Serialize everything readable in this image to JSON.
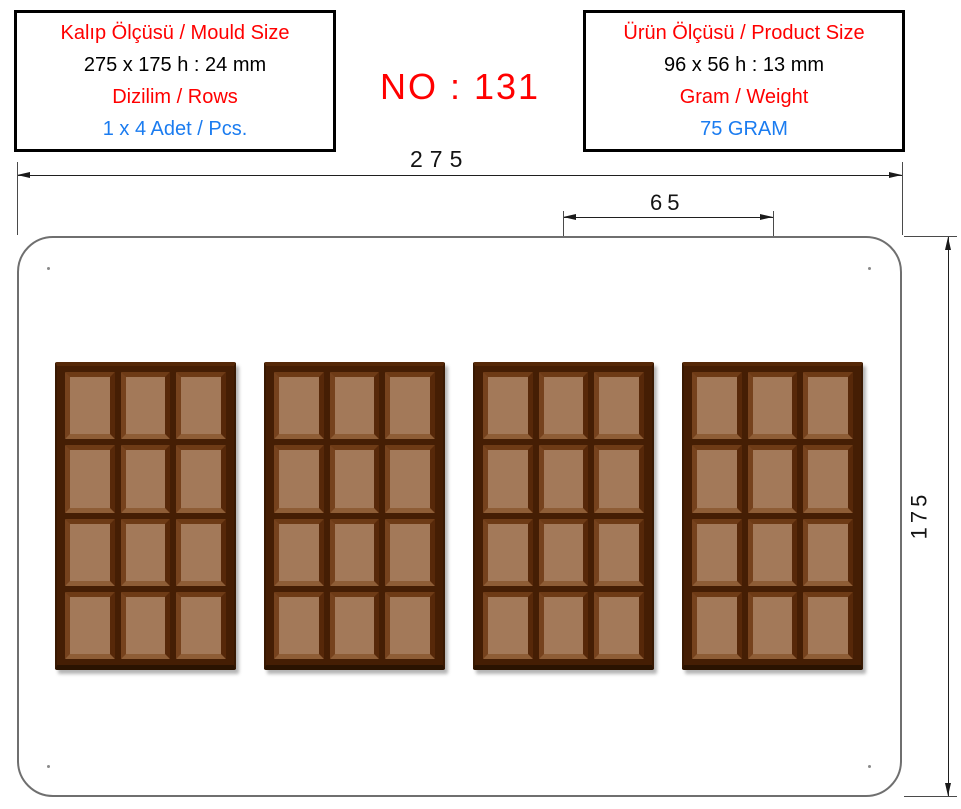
{
  "header": {
    "left_box": {
      "title": "Kalıp Ölçüsü / Mould Size",
      "size_value": "275 x 175 h : 24 mm",
      "rows_label": "Dizilim / Rows",
      "rows_value": "1 x 4 Adet / Pcs."
    },
    "drawing_number": "NO : 131",
    "right_box": {
      "title": "Ürün Ölçüsü / Product Size",
      "size_value": "96 x 56 h : 13 mm",
      "weight_label": "Gram / Weight",
      "weight_value": "75 GRAM"
    }
  },
  "dimensions": {
    "mould_width_mm": "275",
    "bar_pitch_mm": "65",
    "mould_height_mm": "175"
  },
  "mould": {
    "bar_count": 4,
    "bar_columns": 3,
    "bar_rows": 4
  },
  "colors": {
    "accent_red": "#ff0000",
    "accent_blue": "#1b7cf0",
    "chocolate_base": "#451e04",
    "chocolate_face": "#a37959",
    "chocolate_bevel_light": "#8e5d36",
    "chocolate_bevel_dark": "#572809",
    "mould_outline": "#6f6f6f"
  }
}
